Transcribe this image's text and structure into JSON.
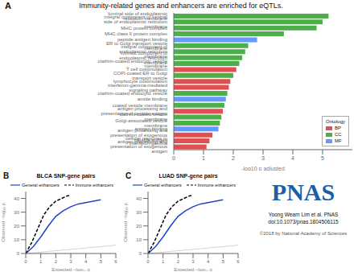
{
  "title": "Immunity-related genes and enhancers are enriched for eQTLs.",
  "annotations": [
    {
      "text": "PNAS",
      "color": "#1a5fa8"
    },
    {
      "text": "Yoong Wearn Lim et al. PNAS doi:10.1073/pnas.1804506115"
    },
    {
      "text": "©2018 by National Academy of Sciences"
    }
  ],
  "chart_data": [
    {
      "type": "bar",
      "orientation": "horizontal",
      "categories": [
        "luminal side of endoplasmic reticulum membrane",
        "integral component of luminal side of endoplasmic reticulum membrane",
        "MHC protein complex",
        "MHC class II protein complex",
        "peptide antigen binding",
        "ER to Golgi transport vesicle membrane",
        "integral component of endoplasmic reticulum membrane",
        "intrinsic component of endoplasmic reticulum membrane",
        "clathrin-coated endocytic vesicle membrane",
        "T cell costimulation",
        "COPI-coated ER to Golgi transport vesicle",
        "lymphocyte costimulation",
        "interferon-gamma-mediated signaling pathway",
        "clathrin-coated endocytic vesicle",
        "amide binding",
        "coated vesicle membrane",
        "antigen processing and presentation of peptide antigen",
        "clathrin-coated vesicle membrane",
        "Golgi-associated vesicle membrane",
        "antigen binding",
        "antigen processing and presentation of exogenous peptide antigen",
        "cellular response to interferon-gamma",
        "antigen processing and presentation of exogenous antigen"
      ],
      "values": [
        5.2,
        5.0,
        4.8,
        3.7,
        2.8,
        2.5,
        2.4,
        2.3,
        2.2,
        2.1,
        2.0,
        1.9,
        1.85,
        1.8,
        1.75,
        1.7,
        1.65,
        1.6,
        1.55,
        1.5,
        1.3,
        1.2,
        1.1
      ],
      "colors": [
        "#4daf4a",
        "#4daf4a",
        "#4daf4a",
        "#4daf4a",
        "#6699ff",
        "#4daf4a",
        "#4daf4a",
        "#4daf4a",
        "#4daf4a",
        "#e05050",
        "#4daf4a",
        "#e05050",
        "#e05050",
        "#4daf4a",
        "#6699ff",
        "#4daf4a",
        "#e05050",
        "#4daf4a",
        "#4daf4a",
        "#6699ff",
        "#e05050",
        "#e05050",
        "#e05050"
      ],
      "xlabel": "-log10 p adjusted",
      "xlim": [
        0,
        6
      ],
      "xticks": [
        0,
        1,
        2,
        3,
        4,
        5
      ],
      "legend": "lower right",
      "legend_title": "Ontology",
      "legend_entries": [
        {
          "name": "BP",
          "color": "#e05050"
        },
        {
          "name": "CC",
          "color": "#4daf4a"
        },
        {
          "name": "MF",
          "color": "#6699ff"
        }
      ],
      "annotations": [
        "A"
      ]
    },
    {
      "type": "line",
      "title": "BLCA SNP-gene pairs",
      "xlabel": "Expected −log₁₀ p",
      "ylabel": "Observed −log₁₀ p",
      "xlim": [
        0,
        6
      ],
      "xticks": [
        0,
        1,
        2,
        3,
        4,
        5,
        6
      ],
      "ylim": [
        0,
        45
      ],
      "yticks": [
        0,
        10,
        20,
        30,
        40
      ],
      "legend": "top",
      "series": [
        {
          "color": "lightgray",
          "x": [
            0,
            6
          ],
          "values": [
            0,
            6
          ]
        },
        {
          "name": "General enhancers",
          "color": "#2244cc",
          "x": [
            0,
            0.5,
            1.0,
            1.5,
            2.0,
            2.5,
            3.0,
            3.5,
            4.0,
            4.5,
            5.0
          ],
          "values": [
            0,
            5,
            12,
            20,
            27,
            31,
            34,
            36,
            37,
            38,
            39
          ]
        },
        {
          "name": "Immune enhancers",
          "color": "black",
          "line_style": "dashed",
          "x": [
            0,
            0.4,
            0.8,
            1.2,
            1.6,
            2.0,
            2.4,
            2.8,
            3.0
          ],
          "values": [
            0,
            8,
            18,
            28,
            34,
            38,
            40,
            42,
            42
          ]
        }
      ],
      "annotations": [
        "B"
      ]
    },
    {
      "type": "line",
      "title": "LUAD SNP-gene pairs",
      "xlabel": "Expected −log₁₀ p",
      "ylabel": "Observed −log₁₀ p",
      "xlim": [
        0,
        6
      ],
      "xticks": [
        0,
        1,
        2,
        3,
        4,
        5,
        6
      ],
      "ylim": [
        0,
        45
      ],
      "yticks": [
        0,
        10,
        20,
        30,
        40
      ],
      "legend": "top",
      "series": [
        {
          "color": "lightgray",
          "x": [
            0,
            6
          ],
          "values": [
            0,
            6
          ]
        },
        {
          "name": "General enhancers",
          "color": "#2244cc",
          "x": [
            0,
            0.5,
            1.0,
            1.5,
            2.0,
            2.5,
            3.0,
            3.5,
            4.0,
            4.5,
            5.0
          ],
          "values": [
            0,
            5,
            12,
            20,
            27,
            31,
            34,
            36,
            37,
            38,
            39
          ]
        },
        {
          "name": "Immune enhancers",
          "color": "black",
          "line_style": "dashed",
          "x": [
            0,
            0.4,
            0.8,
            1.2,
            1.6,
            2.0,
            2.4,
            2.8,
            3.0
          ],
          "values": [
            0,
            8,
            18,
            28,
            34,
            38,
            40,
            42,
            42
          ]
        }
      ],
      "annotations": [
        "C"
      ]
    }
  ]
}
